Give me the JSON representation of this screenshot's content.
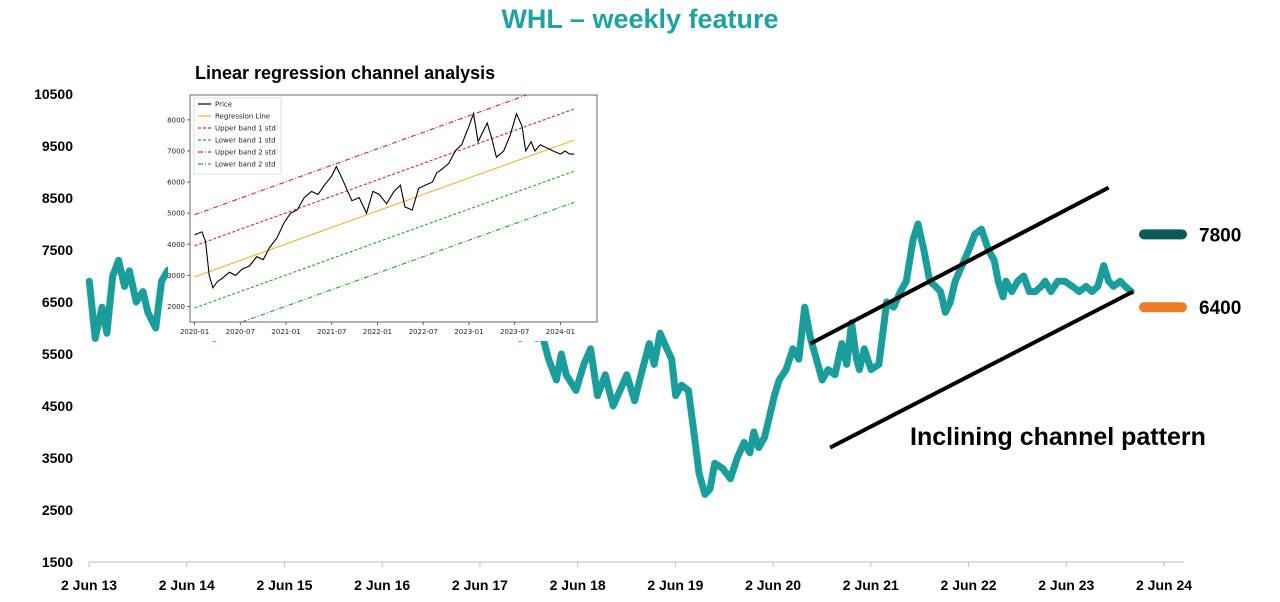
{
  "colors": {
    "title": "#1fa3a2",
    "price_line": "#1a9e9c",
    "level_high": "#0b5a55",
    "level_low": "#ee7d26",
    "channel": "#000000",
    "inset_price": "#000000",
    "inset_regression": "#f2b233",
    "inset_upper1": "#d62728",
    "inset_lower1": "#2ca02c",
    "inset_upper2": "#d62728",
    "inset_lower2": "#2ca02c"
  },
  "chart_data": [
    {
      "type": "line",
      "title": "WHL – weekly feature",
      "xlabel": "",
      "ylabel": "",
      "ylim": [
        1500,
        10500
      ],
      "yticks": [
        "10500",
        "9500",
        "8500",
        "7500",
        "6500",
        "5500",
        "4500",
        "3500",
        "2500",
        "1500"
      ],
      "ytick_values": [
        10500,
        9500,
        8500,
        7500,
        6500,
        5500,
        4500,
        3500,
        2500,
        1500
      ],
      "xlim": [
        2013.417,
        2024.417
      ],
      "xticks": [
        "2 Jun 13",
        "2 Jun 14",
        "2 Jun 15",
        "2 Jun 16",
        "2 Jun 17",
        "2 Jun 18",
        "2 Jun 19",
        "2 Jun 20",
        "2 Jun 21",
        "2 Jun 22",
        "2 Jun 23",
        "2 Jun 24"
      ],
      "xtick_values": [
        2013.417,
        2014.417,
        2015.417,
        2016.417,
        2017.417,
        2018.417,
        2019.417,
        2020.417,
        2021.417,
        2022.417,
        2023.417,
        2024.417
      ],
      "grid": false,
      "series": [
        {
          "x": [
            2013.42,
            2013.48,
            2013.55,
            2013.6,
            2013.66,
            2013.72,
            2013.78,
            2013.83,
            2013.9,
            2013.97,
            2014.02,
            2014.1,
            2014.16,
            2014.22,
            2014.3,
            2014.38,
            2014.45,
            2014.5,
            2014.55,
            2014.6,
            2014.64,
            2014.7,
            2014.76,
            2014.8,
            2017.83,
            2017.9,
            2018.0,
            2018.05,
            2018.12,
            2018.2,
            2018.25,
            2018.3,
            2018.4,
            2018.48,
            2018.55,
            2018.62,
            2018.7,
            2018.78,
            2018.85,
            2018.92,
            2019.0,
            2019.08,
            2019.15,
            2019.2,
            2019.26,
            2019.33,
            2019.38,
            2019.42,
            2019.48,
            2019.55,
            2019.6,
            2019.66,
            2019.72,
            2019.77,
            2019.82,
            2019.9,
            2019.98,
            2020.05,
            2020.12,
            2020.18,
            2020.22,
            2020.27,
            2020.33,
            2020.38,
            2020.43,
            2020.48,
            2020.55,
            2020.62,
            2020.68,
            2020.74,
            2020.8,
            2020.86,
            2020.92,
            2020.98,
            2021.05,
            2021.12,
            2021.17,
            2021.22,
            2021.27,
            2021.3,
            2021.35,
            2021.42,
            2021.5,
            2021.58,
            2021.65,
            2021.72,
            2021.78,
            2021.85,
            2021.9,
            2021.96,
            2022.02,
            2022.08,
            2022.13,
            2022.18,
            2022.23,
            2022.28,
            2022.35,
            2022.42,
            2022.48,
            2022.55,
            2022.62,
            2022.68,
            2022.72,
            2022.77,
            2022.8,
            2022.86,
            2022.92,
            2022.98,
            2023.04,
            2023.1,
            2023.16,
            2023.2,
            2023.26,
            2023.33,
            2023.4,
            2023.48,
            2023.55,
            2023.62,
            2023.68,
            2023.74,
            2023.8,
            2023.85,
            2023.9,
            2023.97,
            2024.02,
            2024.08
          ],
          "y": [
            6900,
            5800,
            6400,
            5900,
            7000,
            7300,
            6800,
            7100,
            6500,
            6700,
            6300,
            6000,
            6900,
            7100,
            7200,
            7000,
            6300,
            6900,
            6500,
            7100,
            6700,
            5800,
            6100,
            6300,
            5800,
            6100,
            5800,
            5900,
            5400,
            5000,
            5500,
            5100,
            4800,
            5300,
            5600,
            4700,
            5100,
            4500,
            4800,
            5100,
            4600,
            5200,
            5700,
            5300,
            5900,
            5600,
            5400,
            4700,
            4900,
            4800,
            4100,
            3200,
            2800,
            2900,
            3400,
            3300,
            3100,
            3500,
            3800,
            3600,
            4000,
            3700,
            3900,
            4300,
            4700,
            5000,
            5200,
            5600,
            5400,
            6400,
            5800,
            5400,
            5000,
            5200,
            5100,
            5700,
            5300,
            6100,
            5400,
            5200,
            5600,
            5200,
            5300,
            6500,
            6400,
            6700,
            6900,
            7700,
            8000,
            7500,
            6900,
            6800,
            6700,
            6300,
            6500,
            6900,
            7200,
            7500,
            7800,
            7900,
            7500,
            7300,
            6900,
            6600,
            6900,
            6700,
            6900,
            7000,
            6700,
            6700,
            6800,
            6900,
            6700,
            6900,
            6900,
            6800,
            6700,
            6800,
            6700,
            6800,
            7200,
            6900,
            6800,
            6900,
            6800,
            6700
          ]
        }
      ],
      "levels": [
        {
          "label": "7800",
          "value": 7800
        },
        {
          "label": "6400",
          "value": 6400
        }
      ],
      "channel": {
        "upper": {
          "x": [
            2020.8,
            2023.85
          ],
          "y": [
            5700,
            8700
          ]
        },
        "lower": {
          "x": [
            2021.0,
            2024.1
          ],
          "y": [
            3700,
            6700
          ]
        }
      },
      "annotations": [
        "Inclining channel pattern"
      ]
    },
    {
      "type": "line",
      "title": "Linear regression channel analysis",
      "xlabel": "",
      "ylabel": "",
      "ylim": [
        1500,
        8800
      ],
      "yticks": [
        "8000",
        "7000",
        "6000",
        "5000",
        "4000",
        "3000",
        "2000"
      ],
      "ytick_values": [
        8000,
        7000,
        6000,
        5000,
        4000,
        3000,
        2000
      ],
      "xlim": [
        2019.95,
        2024.4
      ],
      "xticks": [
        "2020-01",
        "2020-07",
        "2021-01",
        "2021-07",
        "2022-01",
        "2022-07",
        "2023-01",
        "2023-07",
        "2024-01"
      ],
      "xtick_values": [
        2020.0,
        2020.5,
        2021.0,
        2021.5,
        2022.0,
        2022.5,
        2023.0,
        2023.5,
        2024.0
      ],
      "grid": false,
      "legend_position": "top-left",
      "series": [
        {
          "name": "Price",
          "x": [
            2020.0,
            2020.08,
            2020.12,
            2020.16,
            2020.2,
            2020.25,
            2020.3,
            2020.38,
            2020.45,
            2020.52,
            2020.6,
            2020.68,
            2020.75,
            2020.82,
            2020.9,
            2020.98,
            2021.05,
            2021.12,
            2021.2,
            2021.28,
            2021.35,
            2021.42,
            2021.5,
            2021.55,
            2021.6,
            2021.66,
            2021.72,
            2021.8,
            2021.88,
            2021.95,
            2022.02,
            2022.1,
            2022.18,
            2022.25,
            2022.3,
            2022.38,
            2022.45,
            2022.52,
            2022.6,
            2022.65,
            2022.7,
            2022.78,
            2022.85,
            2022.92,
            2023.0,
            2023.05,
            2023.1,
            2023.15,
            2023.2,
            2023.25,
            2023.3,
            2023.38,
            2023.45,
            2023.52,
            2023.58,
            2023.62,
            2023.68,
            2023.72,
            2023.78,
            2023.85,
            2023.92,
            2024.0,
            2024.05,
            2024.1,
            2024.15
          ],
          "y": [
            4300,
            4400,
            4100,
            3000,
            2600,
            2800,
            2900,
            3100,
            3000,
            3200,
            3300,
            3600,
            3500,
            3900,
            4200,
            4700,
            5000,
            5100,
            5500,
            5700,
            5600,
            5900,
            6200,
            6500,
            6200,
            5800,
            5400,
            5500,
            5000,
            5700,
            5600,
            5300,
            5700,
            5900,
            5200,
            5100,
            5800,
            5900,
            6000,
            6300,
            6400,
            6600,
            7000,
            7200,
            7800,
            8200,
            7300,
            7600,
            7900,
            7400,
            6800,
            7000,
            7500,
            8200,
            7800,
            7000,
            7300,
            7000,
            7200,
            7100,
            7000,
            6900,
            7000,
            6900,
            6900
          ]
        },
        {
          "name": "Regression Line",
          "x": [
            2020.0,
            2024.15
          ],
          "y": [
            2950,
            7350
          ]
        },
        {
          "name": "Upper band 1 std",
          "x": [
            2020.0,
            2024.15
          ],
          "y": [
            3950,
            8350
          ]
        },
        {
          "name": "Lower band 1 std",
          "x": [
            2020.0,
            2024.15
          ],
          "y": [
            1950,
            6350
          ]
        },
        {
          "name": "Upper band 2 std",
          "x": [
            2020.0,
            2024.15
          ],
          "y": [
            4950,
            9350
          ]
        },
        {
          "name": "Lower band 2 std",
          "x": [
            2020.0,
            2024.15
          ],
          "y": [
            950,
            5350
          ]
        }
      ]
    }
  ]
}
